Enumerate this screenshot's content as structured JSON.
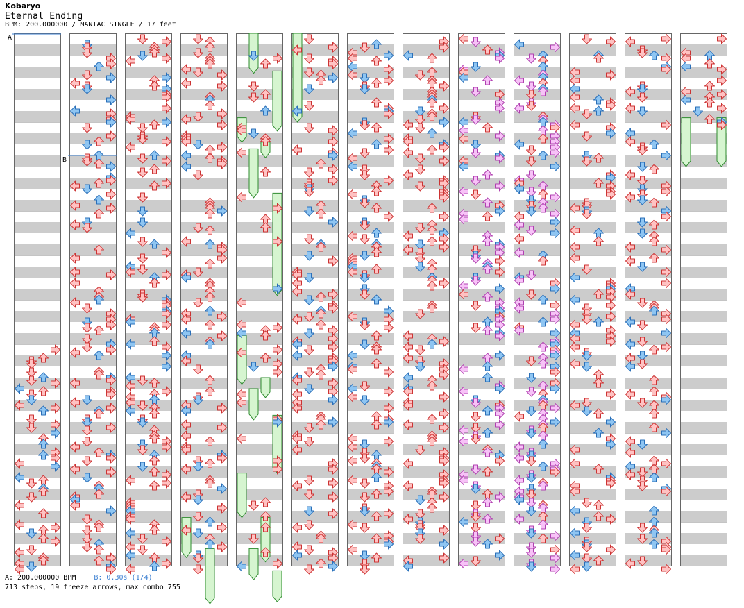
{
  "header": {
    "artist": "Kobaryo",
    "title": "Eternal Ending",
    "meta": "BPM: 200.000000 / MANIAC SINGLE / 17 feet"
  },
  "markers": {
    "a_label": "A",
    "b_label": "B"
  },
  "footer": {
    "bpm_a": "A: 200.000000 BPM",
    "bpm_b": "B: 0.30s (1/4)",
    "stats": "713 steps, 19 freeze arrows, max combo 755"
  },
  "chart": {
    "mode": "single",
    "columns": 13,
    "measures_per_column": 12,
    "lanes": [
      "left",
      "down",
      "up",
      "right"
    ],
    "colors": {
      "quarter_fill": "#ffc2c2",
      "quarter_stroke": "#cc3333",
      "eighth_fill": "#8ec5f2",
      "eighth_stroke": "#2a6fb8",
      "sixteenth_fill": "#f7c2f7",
      "sixteenth_stroke": "#b040b0",
      "freeze_fill": "#d6f5d0",
      "freeze_stroke": "#2e8b2e",
      "band_gray": "#cccccc",
      "bar_line": "#888888"
    },
    "streams": [
      {
        "column": 0,
        "from": 7,
        "to": 12,
        "density": 0.55
      },
      {
        "column": 1,
        "from": 0,
        "to": 12,
        "density": 0.55
      },
      {
        "column": 2,
        "from": 0,
        "to": 12,
        "density": 0.55
      },
      {
        "column": 3,
        "from": 0,
        "to": 12,
        "density": 0.55
      },
      {
        "column": 4,
        "from": 0,
        "to": 12,
        "density": 0.18
      },
      {
        "column": 5,
        "from": 0,
        "to": 12,
        "density": 0.55
      },
      {
        "column": 6,
        "from": 0,
        "to": 12,
        "density": 0.6
      },
      {
        "column": 7,
        "from": 0,
        "to": 12,
        "density": 0.6
      },
      {
        "column": 8,
        "from": 0,
        "to": 12,
        "density": 0.65
      },
      {
        "column": 9,
        "from": 0,
        "to": 12,
        "density": 0.75
      },
      {
        "column": 10,
        "from": 0,
        "to": 12,
        "density": 0.5
      },
      {
        "column": 11,
        "from": 0,
        "to": 12,
        "density": 0.55
      },
      {
        "column": 12,
        "from": 0,
        "to": 2,
        "density": 0.55
      }
    ],
    "freezes": [
      {
        "column": 4,
        "lane": "down",
        "start": 0,
        "end": 0.9
      },
      {
        "column": 4,
        "lane": "right",
        "start": 0.85,
        "end": 2.2
      },
      {
        "column": 4,
        "lane": "left",
        "start": 1.9,
        "end": 2.45
      },
      {
        "column": 4,
        "lane": "up",
        "start": 2.45,
        "end": 2.8
      },
      {
        "column": 4,
        "lane": "down",
        "start": 2.6,
        "end": 3.7
      },
      {
        "column": 4,
        "lane": "right",
        "start": 3.6,
        "end": 5.9
      },
      {
        "column": 4,
        "lane": "left",
        "start": 6.8,
        "end": 7.9
      },
      {
        "column": 4,
        "lane": "up",
        "start": 7.75,
        "end": 8.2
      },
      {
        "column": 4,
        "lane": "down",
        "start": 8.0,
        "end": 8.7
      },
      {
        "column": 4,
        "lane": "right",
        "start": 8.6,
        "end": 9.9
      },
      {
        "column": 4,
        "lane": "left",
        "start": 9.9,
        "end": 10.9
      },
      {
        "column": 4,
        "lane": "up",
        "start": 10.9,
        "end": 11.9
      },
      {
        "column": 4,
        "lane": "down",
        "start": 11.6,
        "end": 12.3
      },
      {
        "column": 4,
        "lane": "right",
        "start": 12.1,
        "end": 12.8
      },
      {
        "column": 5,
        "lane": "left",
        "start": 0,
        "end": 2.0
      },
      {
        "column": 3,
        "lane": "left",
        "start": 10.9,
        "end": 11.8
      },
      {
        "column": 3,
        "lane": "up",
        "start": 11.6,
        "end": 12.9
      },
      {
        "column": 12,
        "lane": "left",
        "start": 1.9,
        "end": 3.0
      },
      {
        "column": 12,
        "lane": "right",
        "start": 1.9,
        "end": 3.0
      }
    ]
  }
}
